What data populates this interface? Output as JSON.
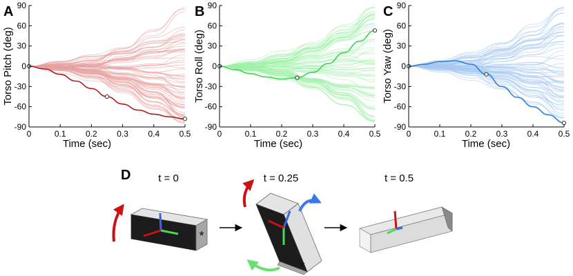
{
  "chart_data": [
    {
      "panel": "A",
      "type": "line",
      "xlabel": "Time (sec)",
      "ylabel": "Torso Pitch (deg)",
      "xlim": [
        0,
        0.5
      ],
      "ylim": [
        -90,
        90
      ],
      "xticks": [
        "0",
        "0.1",
        "0.2",
        "0.3",
        "0.4",
        "0.5"
      ],
      "yticks": [
        "-90",
        "-60",
        "-30",
        "0",
        "30",
        "60",
        "90"
      ],
      "grid": false,
      "bundle_color": "#e8a0a0",
      "highlight_color": "#b31b1b",
      "bundle_seed": 11,
      "highlight_series": {
        "x": [
          0,
          0.05,
          0.1,
          0.15,
          0.2,
          0.25,
          0.3,
          0.35,
          0.4,
          0.45,
          0.5
        ],
        "values": [
          0,
          -4,
          -12,
          -22,
          -33,
          -45,
          -56,
          -65,
          -71,
          -75,
          -78
        ]
      },
      "markers": [
        {
          "x": 0,
          "y": 0
        },
        {
          "x": 0.25,
          "y": -45
        },
        {
          "x": 0.5,
          "y": -78
        }
      ]
    },
    {
      "panel": "B",
      "type": "line",
      "xlabel": "Time (sec)",
      "ylabel": "Torso Roll (deg)",
      "xlim": [
        0,
        0.5
      ],
      "ylim": [
        -90,
        90
      ],
      "xticks": [
        "0",
        "0.1",
        "0.2",
        "0.3",
        "0.4",
        "0.5"
      ],
      "yticks": [
        "-90",
        "-60",
        "-30",
        "0",
        "30",
        "60",
        "90"
      ],
      "grid": false,
      "bundle_color": "#9ff0a8",
      "highlight_color": "#3dd44f",
      "bundle_seed": 23,
      "highlight_series": {
        "x": [
          0,
          0.05,
          0.1,
          0.15,
          0.2,
          0.25,
          0.3,
          0.35,
          0.4,
          0.45,
          0.5
        ],
        "values": [
          0,
          -5,
          -11,
          -16,
          -19,
          -17,
          -9,
          4,
          20,
          37,
          53
        ]
      },
      "markers": [
        {
          "x": 0,
          "y": 0
        },
        {
          "x": 0.25,
          "y": -17
        },
        {
          "x": 0.5,
          "y": 53
        }
      ]
    },
    {
      "panel": "C",
      "type": "line",
      "xlabel": "Time (sec)",
      "ylabel": "Torso Yaw (deg)",
      "xlim": [
        0,
        0.5
      ],
      "ylim": [
        -90,
        90
      ],
      "xticks": [
        "0",
        "0.1",
        "0.2",
        "0.3",
        "0.4",
        "0.5"
      ],
      "yticks": [
        "-90",
        "-60",
        "-30",
        "0",
        "30",
        "60",
        "90"
      ],
      "grid": false,
      "bundle_color": "#a8c8f0",
      "highlight_color": "#2f80d8",
      "bundle_seed": 37,
      "highlight_series": {
        "x": [
          0,
          0.05,
          0.1,
          0.15,
          0.2,
          0.25,
          0.3,
          0.35,
          0.4,
          0.45,
          0.5
        ],
        "values": [
          0,
          3,
          7,
          8,
          3,
          -12,
          -30,
          -46,
          -60,
          -72,
          -84
        ]
      },
      "markers": [
        {
          "x": 0,
          "y": 0
        },
        {
          "x": 0.25,
          "y": -12
        },
        {
          "x": 0.5,
          "y": -84
        }
      ]
    }
  ],
  "diagram": {
    "panel": "D",
    "time_labels": [
      "t = 0",
      "t = 0.25",
      "t = 0.5"
    ],
    "face_marker": "*",
    "colors": {
      "pitch": "#cc1111",
      "roll": "#44dd55",
      "yaw": "#3366ee",
      "block_dark": "#1c1c1c",
      "block_light": "#e4e4e4",
      "block_side": "#a6a6a6"
    }
  }
}
